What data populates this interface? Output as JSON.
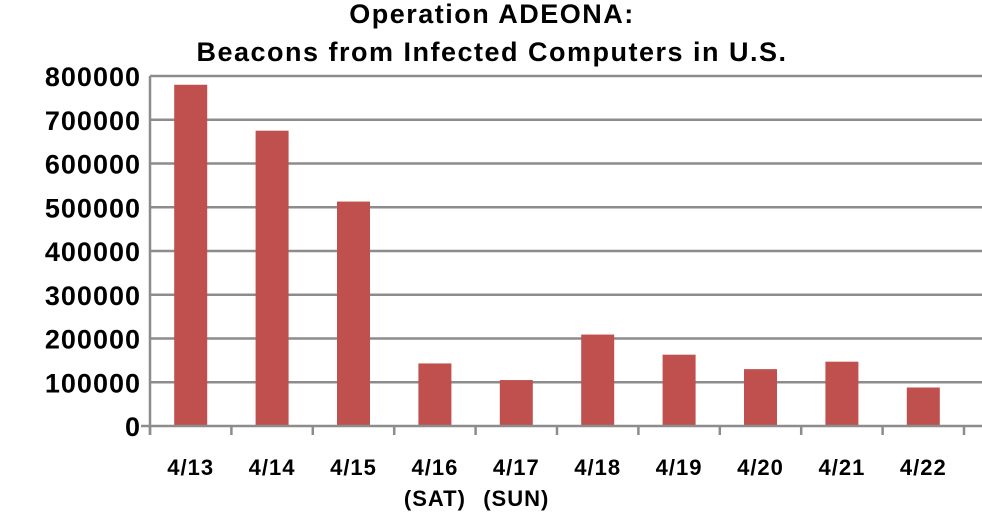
{
  "chart_data": {
    "type": "bar",
    "title": "Operation ADEONA:",
    "subtitle": "Beacons from Infected Computers in U.S.",
    "categories": [
      "4/13",
      "4/14",
      "4/15",
      "4/16",
      "4/17",
      "4/18",
      "4/19",
      "4/20",
      "4/21",
      "4/22"
    ],
    "sublabels": [
      "",
      "",
      "",
      "(SAT)",
      "(SUN)",
      "",
      "",
      "",
      "",
      ""
    ],
    "values": [
      780000,
      675000,
      513000,
      143000,
      105000,
      209000,
      163000,
      130000,
      147000,
      88000
    ],
    "yticks": [
      "0",
      "100000",
      "200000",
      "300000",
      "400000",
      "500000",
      "600000",
      "700000",
      "800000"
    ],
    "ylim": [
      0,
      800000
    ],
    "xlabel": "",
    "ylabel": "",
    "grid": true,
    "bar_color": "#c0504d",
    "grid_color": "#8c8c8c"
  }
}
